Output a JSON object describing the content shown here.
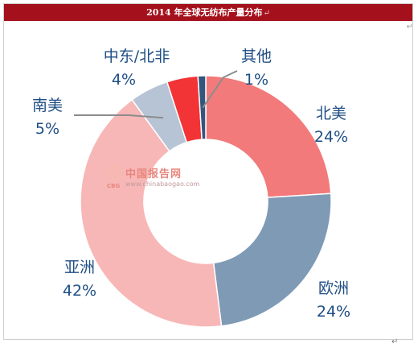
{
  "header": {
    "title": "2014 年全球无纺布产量分布",
    "title_mark": "↵"
  },
  "watermark": {
    "name_cn": "中国报告网",
    "domain": "www.chinabaogao.com",
    "abbr": "CBG"
  },
  "marks": {
    "corner": "↵",
    "bottom": "↵"
  },
  "colors": {
    "title_bg": "#a4111c",
    "label_text": "#1f4e84",
    "leader_line": "#8c8c8c"
  },
  "chart_data": {
    "type": "pie",
    "donut": true,
    "title": "2014 年全球无纺布产量分布",
    "slices": [
      {
        "label": "北美",
        "value": 24,
        "value_label": "24%",
        "color": "#f27a7a"
      },
      {
        "label": "欧洲",
        "value": 24,
        "value_label": "24%",
        "color": "#7f9ab5"
      },
      {
        "label": "亚洲",
        "value": 42,
        "value_label": "42%",
        "color": "#f8b7b7"
      },
      {
        "label": "南美",
        "value": 5,
        "value_label": "5%",
        "color": "#b7c4d5"
      },
      {
        "label": "中东/北非",
        "value": 4,
        "value_label": "4%",
        "color": "#f23436"
      },
      {
        "label": "其他",
        "value": 1,
        "value_label": "1%",
        "color": "#34557e"
      }
    ]
  }
}
